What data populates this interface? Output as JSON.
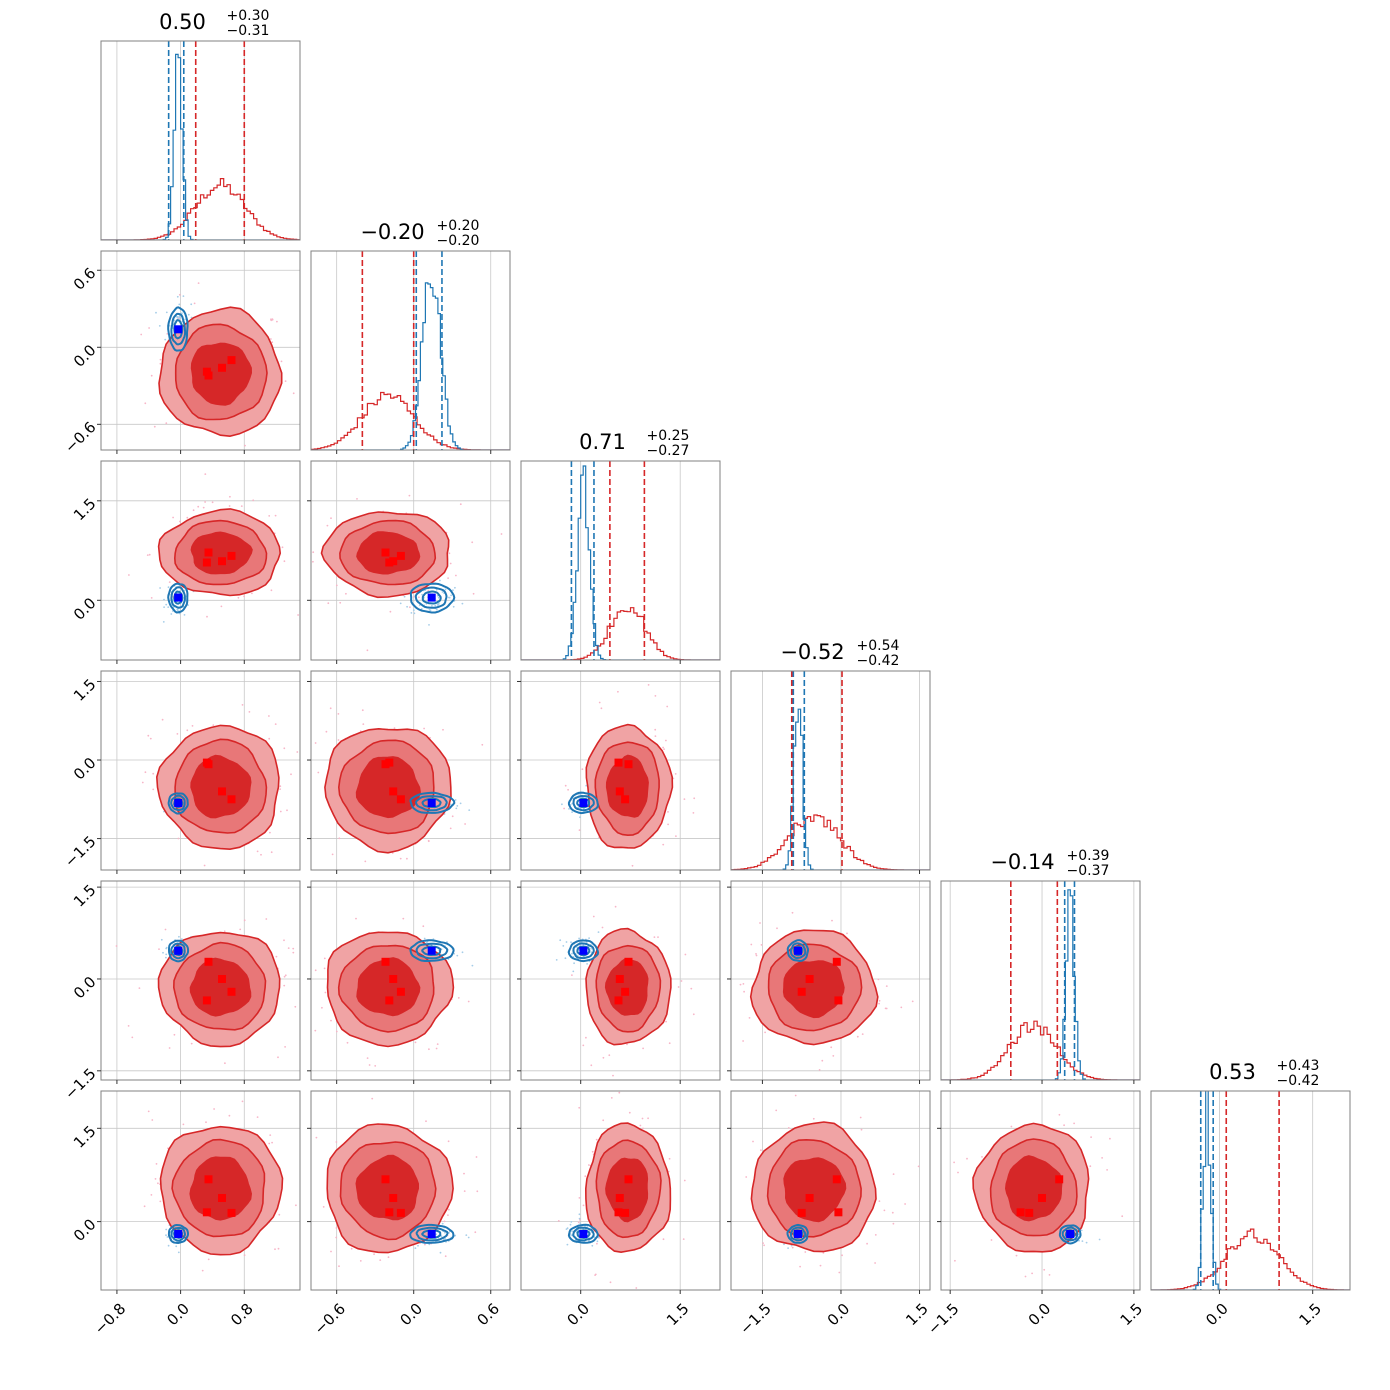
{
  "chart_data": {
    "type": "scatter",
    "subtype": "corner-plot",
    "n_params": 6,
    "grid": true,
    "colors": {
      "red_series": "#d62728",
      "red_fill_outer": "#f0a3a4",
      "red_fill_inner": "#d62728",
      "red_points": "#f7b6c8",
      "blue_series": "#1f77b4",
      "blue_points": "#a6cde8",
      "red_marker": "#ff0000",
      "blue_marker": "#0000ff"
    },
    "params": [
      {
        "title_value": "0.50",
        "title_plus": "+0.30",
        "title_minus": "−0.31",
        "range": [
          -1.0,
          1.5
        ],
        "ticks": [
          -0.8,
          0.0,
          0.8
        ],
        "tick_labels": [
          "−0.8",
          "0.0",
          "0.8"
        ],
        "red_mean": 0.5,
        "red_sd": 0.31,
        "red_q": [
          0.19,
          0.8
        ],
        "blue_mean": -0.03,
        "blue_sd": 0.05,
        "blue_q": [
          -0.15,
          0.04
        ],
        "red_line_mid": 0.19
      },
      {
        "title_value": "−0.20",
        "title_plus": "+0.20",
        "title_minus": "−0.20",
        "range": [
          -0.8,
          0.75
        ],
        "ticks": [
          -0.6,
          0.0,
          0.6
        ],
        "tick_labels": [
          "−0.6",
          "0.0",
          "0.6"
        ],
        "red_mean": -0.2,
        "red_sd": 0.2,
        "red_q": [
          -0.4,
          0.0
        ],
        "blue_mean": 0.14,
        "blue_sd": 0.07,
        "blue_q": [
          0.02,
          0.22
        ]
      },
      {
        "title_value": "0.71",
        "title_plus": "+0.25",
        "title_minus": "−0.27",
        "range": [
          -0.9,
          2.1
        ],
        "ticks": [
          0.0,
          1.5
        ],
        "tick_labels": [
          "0.0",
          "1.5"
        ],
        "red_mean": 0.71,
        "red_sd": 0.26,
        "red_q": [
          0.44,
          0.96
        ],
        "blue_mean": 0.04,
        "blue_sd": 0.09,
        "blue_q": [
          -0.14,
          0.2
        ]
      },
      {
        "title_value": "−0.52",
        "title_plus": "+0.54",
        "title_minus": "−0.42",
        "range": [
          -2.1,
          1.7
        ],
        "ticks": [
          -1.5,
          0.0,
          1.5
        ],
        "tick_labels": [
          "−1.5",
          "0.0",
          "1.5"
        ],
        "red_mean": -0.52,
        "red_sd": 0.48,
        "red_q": [
          -0.94,
          0.02
        ],
        "blue_mean": -0.82,
        "blue_sd": 0.08,
        "blue_q": [
          -0.91,
          -0.7
        ]
      },
      {
        "title_value": "−0.14",
        "title_plus": "+0.39",
        "title_minus": "−0.37",
        "range": [
          -1.65,
          1.6
        ],
        "ticks": [
          -1.5,
          0.0,
          1.5
        ],
        "tick_labels": [
          "−1.5",
          "0.0",
          "1.5"
        ],
        "red_mean": -0.14,
        "red_sd": 0.38,
        "red_q": [
          -0.51,
          0.25
        ],
        "blue_mean": 0.46,
        "blue_sd": 0.07,
        "blue_q": [
          0.37,
          0.53
        ]
      },
      {
        "title_value": "0.53",
        "title_plus": "+0.43",
        "title_minus": "−0.42",
        "range": [
          -1.1,
          2.1
        ],
        "ticks": [
          0.0,
          1.5
        ],
        "tick_labels": [
          "0.0",
          "1.5"
        ],
        "red_mean": 0.53,
        "red_sd": 0.42,
        "red_q": [
          0.11,
          0.96
        ],
        "blue_mean": -0.2,
        "blue_sd": 0.06,
        "blue_q": [
          -0.3,
          -0.1
        ]
      }
    ],
    "red_markers": [
      [
        0.35,
        -0.22,
        0.72,
        -0.08,
        0.28,
        0.68
      ],
      [
        0.52,
        -0.16,
        0.59,
        -0.6,
        0.0,
        0.38
      ],
      [
        0.64,
        -0.1,
        0.67,
        -0.75,
        -0.21,
        0.14
      ],
      [
        0.33,
        -0.19,
        0.57,
        -0.05,
        -0.35,
        0.15
      ]
    ],
    "blue_marker": [
      -0.03,
      0.14,
      0.04,
      -0.82,
      0.46,
      -0.2
    ]
  }
}
